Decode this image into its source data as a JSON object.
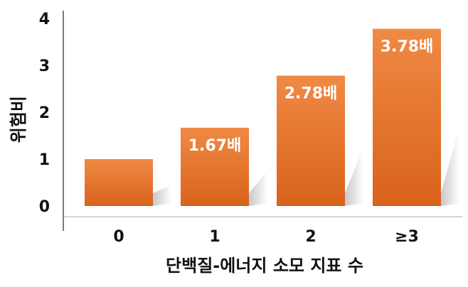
{
  "chart_data": {
    "type": "bar",
    "title": "",
    "xlabel": "단백질-에너지 소모 지표 수",
    "ylabel": "위험비",
    "categories": [
      "0",
      "1",
      "2",
      "≥3"
    ],
    "values": [
      1,
      1.67,
      2.78,
      3.78
    ],
    "data_labels": [
      "",
      "1.67배",
      "2.78배",
      "3.78배"
    ],
    "y_ticks": [
      "0",
      "1",
      "2",
      "3",
      "4"
    ],
    "ylim": [
      0,
      4
    ],
    "grid": false,
    "legend": "none",
    "bar_color": "#e8772e",
    "bar_color_dark": "#d9621c"
  }
}
